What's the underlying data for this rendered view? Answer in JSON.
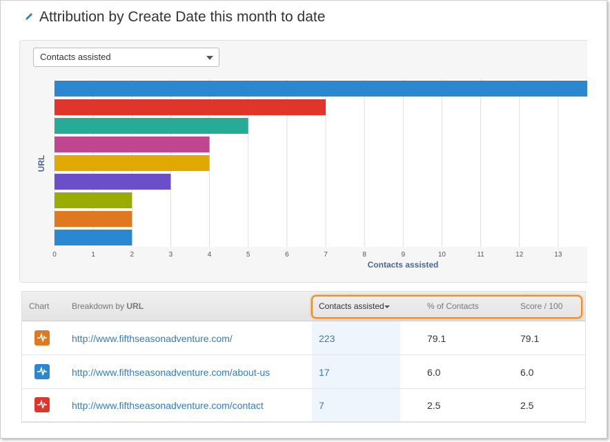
{
  "header": {
    "title": "Attribution by Create Date this month to date"
  },
  "dropdown": {
    "selected": "Contacts assisted"
  },
  "chart_data": {
    "type": "bar",
    "orientation": "horizontal",
    "categories": [
      null,
      null,
      null,
      null,
      null,
      null,
      null,
      null,
      null
    ],
    "values": [
      14,
      7,
      5,
      4,
      4,
      3,
      2,
      2,
      2
    ],
    "colors": [
      "#2a87d0",
      "#e0352a",
      "#26ab96",
      "#c0468f",
      "#e0a800",
      "#6b4fc9",
      "#99ad00",
      "#e07820",
      "#2a87d0"
    ],
    "xlim": [
      0,
      14
    ],
    "xticks": [
      0,
      1,
      2,
      3,
      4,
      5,
      6,
      7,
      8,
      9,
      10,
      11,
      12,
      13
    ],
    "xlabel": "Contacts assisted",
    "ylabel": "URL",
    "grid": true
  },
  "table": {
    "headers": {
      "chart": "Chart",
      "breakdown_prefix": "Breakdown by",
      "breakdown_field": "URL",
      "contacts": "Contacts assisted",
      "percent": "% of Contacts",
      "score": "Score / 100"
    },
    "rows": [
      {
        "color": "#e07820",
        "url": "http://www.fifthseasonadventure.com/",
        "contacts": "223",
        "percent": "79.1",
        "score": "79.1"
      },
      {
        "color": "#2a87d0",
        "url": "http://www.fifthseasonadventure.com/about-us",
        "contacts": "17",
        "percent": "6.0",
        "score": "6.0"
      },
      {
        "color": "#e0352a",
        "url": "http://www.fifthseasonadventure.com/contact",
        "contacts": "7",
        "percent": "2.5",
        "score": "2.5"
      }
    ]
  }
}
